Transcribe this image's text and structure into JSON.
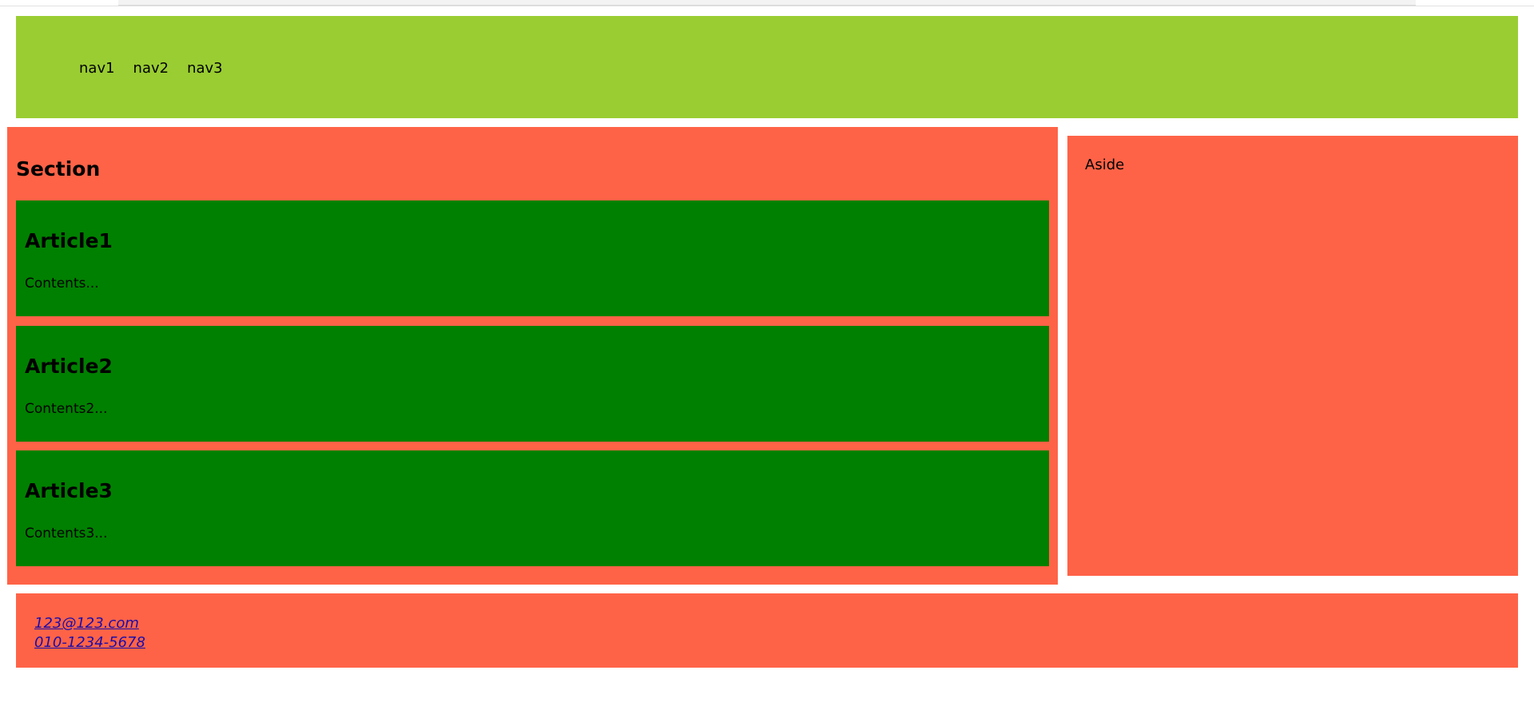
{
  "header": {
    "nav": [
      "nav1",
      "nav2",
      "nav3"
    ]
  },
  "section": {
    "title": "Section",
    "articles": [
      {
        "title": "Article1",
        "content": "Contents..."
      },
      {
        "title": "Article2",
        "content": "Contents2..."
      },
      {
        "title": "Article3",
        "content": "Contents3..."
      }
    ]
  },
  "aside": {
    "text": "Aside"
  },
  "footer": {
    "email": "123@123.com",
    "phone": "010-1234-5678"
  },
  "colors": {
    "header_bg": "#9acd32",
    "section_bg": "#ff6347",
    "article_bg": "#008000",
    "aside_bg": "#ff6347",
    "footer_bg": "#ff6347",
    "link": "#1a0dab"
  }
}
